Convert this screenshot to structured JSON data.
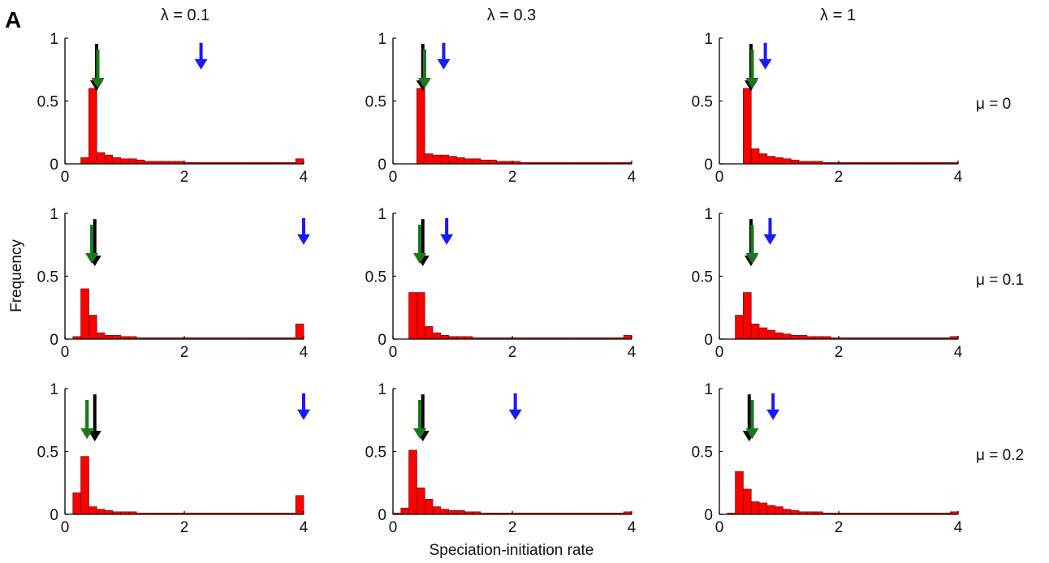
{
  "panel_letter": "A",
  "y_axis_label": "Frequency",
  "x_axis_label": "Speciation-initiation rate",
  "column_labels": [
    "λ = 0.1",
    "λ = 0.3",
    "λ = 1"
  ],
  "row_labels": [
    "μ = 0",
    "μ = 0.1",
    "μ = 0.2"
  ],
  "colors": {
    "bars": "#ff0000",
    "bar_edge": "#7a1010",
    "arrow_black": "#000000",
    "arrow_green": "#1a7a1a",
    "arrow_blue": "#1a1aff"
  },
  "chart_data": [
    {
      "type": "bar",
      "row": 0,
      "col": 0,
      "xlim": [
        0,
        4
      ],
      "ylim": [
        0,
        1
      ],
      "xticks": [
        0,
        2,
        4
      ],
      "yticks": [
        0,
        0.5,
        1
      ],
      "bin_width": 0.1333,
      "x": [
        0.067,
        0.2,
        0.333,
        0.467,
        0.6,
        0.733,
        0.867,
        1.0,
        1.133,
        1.267,
        1.4,
        1.533,
        1.667,
        1.8,
        1.933,
        2.067,
        2.2,
        2.333,
        2.467,
        2.6,
        2.733,
        2.867,
        3.0,
        3.133,
        3.267,
        3.4,
        3.533,
        3.667,
        3.8,
        3.933
      ],
      "values": [
        0,
        0,
        0.05,
        0.6,
        0.09,
        0.07,
        0.05,
        0.04,
        0.04,
        0.03,
        0.02,
        0.02,
        0.02,
        0.02,
        0.02,
        0.01,
        0.01,
        0.01,
        0.01,
        0.01,
        0.01,
        0.01,
        0.01,
        0.01,
        0.01,
        0.01,
        0.01,
        0.01,
        0.01,
        0.04
      ],
      "arrows": {
        "black": 0.53,
        "green": 0.55,
        "blue": 2.28
      }
    },
    {
      "type": "bar",
      "row": 0,
      "col": 1,
      "xlim": [
        0,
        4
      ],
      "ylim": [
        0,
        1
      ],
      "xticks": [
        0,
        2,
        4
      ],
      "yticks": [
        0,
        0.5,
        1
      ],
      "bin_width": 0.1333,
      "x": [
        0.067,
        0.2,
        0.333,
        0.467,
        0.6,
        0.733,
        0.867,
        1.0,
        1.133,
        1.267,
        1.4,
        1.533,
        1.667,
        1.8,
        1.933,
        2.067,
        2.2,
        2.333,
        2.467,
        2.6,
        2.733,
        2.867,
        3.0,
        3.133,
        3.267,
        3.4,
        3.533,
        3.667,
        3.8,
        3.933
      ],
      "values": [
        0,
        0,
        0,
        0.6,
        0.08,
        0.07,
        0.07,
        0.06,
        0.05,
        0.04,
        0.04,
        0.03,
        0.03,
        0.02,
        0.02,
        0.02,
        0.01,
        0.01,
        0.01,
        0.01,
        0.01,
        0.01,
        0.01,
        0.01,
        0.01,
        0.01,
        0.01,
        0.01,
        0.01,
        0.01
      ],
      "arrows": {
        "black": 0.5,
        "green": 0.53,
        "blue": 0.85
      }
    },
    {
      "type": "bar",
      "row": 0,
      "col": 2,
      "xlim": [
        0,
        4
      ],
      "ylim": [
        0,
        1
      ],
      "xticks": [
        0,
        2,
        4
      ],
      "yticks": [
        0,
        0.5,
        1
      ],
      "bin_width": 0.1333,
      "x": [
        0.067,
        0.2,
        0.333,
        0.467,
        0.6,
        0.733,
        0.867,
        1.0,
        1.133,
        1.267,
        1.4,
        1.533,
        1.667,
        1.8,
        1.933,
        2.067,
        2.2,
        2.333,
        2.467,
        2.6,
        2.733,
        2.867,
        3.0,
        3.133,
        3.267,
        3.4,
        3.533,
        3.667,
        3.8,
        3.933
      ],
      "values": [
        0,
        0,
        0,
        0.6,
        0.12,
        0.08,
        0.06,
        0.05,
        0.04,
        0.03,
        0.02,
        0.02,
        0.02,
        0.01,
        0.01,
        0.01,
        0.01,
        0.01,
        0.01,
        0.01,
        0.01,
        0.01,
        0.01,
        0.01,
        0.01,
        0.01,
        0.01,
        0.01,
        0.01,
        0.01
      ],
      "arrows": {
        "black": 0.53,
        "green": 0.55,
        "blue": 0.77
      }
    },
    {
      "type": "bar",
      "row": 1,
      "col": 0,
      "xlim": [
        0,
        4
      ],
      "ylim": [
        0,
        1
      ],
      "xticks": [
        0,
        2,
        4
      ],
      "yticks": [
        0,
        0.5,
        1
      ],
      "bin_width": 0.1333,
      "x": [
        0.067,
        0.2,
        0.333,
        0.467,
        0.6,
        0.733,
        0.867,
        1.0,
        1.133,
        1.267,
        1.4,
        1.533,
        1.667,
        1.8,
        1.933,
        2.067,
        2.2,
        2.333,
        2.467,
        2.6,
        2.733,
        2.867,
        3.0,
        3.133,
        3.267,
        3.4,
        3.533,
        3.667,
        3.8,
        3.933
      ],
      "values": [
        0,
        0.02,
        0.4,
        0.19,
        0.05,
        0.03,
        0.03,
        0.02,
        0.02,
        0.01,
        0.01,
        0.01,
        0.01,
        0.01,
        0.01,
        0.01,
        0.01,
        0.01,
        0.01,
        0.01,
        0.01,
        0.01,
        0.01,
        0.01,
        0.01,
        0.01,
        0.01,
        0.01,
        0.01,
        0.12
      ],
      "arrows": {
        "black": 0.5,
        "green": 0.45,
        "blue": 4.0
      }
    },
    {
      "type": "bar",
      "row": 1,
      "col": 1,
      "xlim": [
        0,
        4
      ],
      "ylim": [
        0,
        1
      ],
      "xticks": [
        0,
        2,
        4
      ],
      "yticks": [
        0,
        0.5,
        1
      ],
      "bin_width": 0.1333,
      "x": [
        0.067,
        0.2,
        0.333,
        0.467,
        0.6,
        0.733,
        0.867,
        1.0,
        1.133,
        1.267,
        1.4,
        1.533,
        1.667,
        1.8,
        1.933,
        2.067,
        2.2,
        2.333,
        2.467,
        2.6,
        2.733,
        2.867,
        3.0,
        3.133,
        3.267,
        3.4,
        3.533,
        3.667,
        3.8,
        3.933
      ],
      "values": [
        0,
        0,
        0.37,
        0.37,
        0.1,
        0.05,
        0.03,
        0.02,
        0.02,
        0.02,
        0.01,
        0.01,
        0.01,
        0.01,
        0.01,
        0.01,
        0.01,
        0.01,
        0.01,
        0.01,
        0.01,
        0.01,
        0.01,
        0.01,
        0.01,
        0.01,
        0.01,
        0.01,
        0.01,
        0.03
      ],
      "arrows": {
        "black": 0.5,
        "green": 0.45,
        "blue": 0.9
      }
    },
    {
      "type": "bar",
      "row": 1,
      "col": 2,
      "xlim": [
        0,
        4
      ],
      "ylim": [
        0,
        1
      ],
      "xticks": [
        0,
        2,
        4
      ],
      "yticks": [
        0,
        0.5,
        1
      ],
      "bin_width": 0.1333,
      "x": [
        0.067,
        0.2,
        0.333,
        0.467,
        0.6,
        0.733,
        0.867,
        1.0,
        1.133,
        1.267,
        1.4,
        1.533,
        1.667,
        1.8,
        1.933,
        2.067,
        2.2,
        2.333,
        2.467,
        2.6,
        2.733,
        2.867,
        3.0,
        3.133,
        3.267,
        3.4,
        3.533,
        3.667,
        3.8,
        3.933
      ],
      "values": [
        0,
        0,
        0.19,
        0.37,
        0.12,
        0.09,
        0.07,
        0.05,
        0.04,
        0.03,
        0.03,
        0.02,
        0.02,
        0.02,
        0.01,
        0.01,
        0.01,
        0.01,
        0.01,
        0.01,
        0.01,
        0.01,
        0.01,
        0.01,
        0.01,
        0.01,
        0.01,
        0.01,
        0.01,
        0.02
      ],
      "arrows": {
        "black": 0.53,
        "green": 0.55,
        "blue": 0.85
      }
    },
    {
      "type": "bar",
      "row": 2,
      "col": 0,
      "xlim": [
        0,
        4
      ],
      "ylim": [
        0,
        1
      ],
      "xticks": [
        0,
        2,
        4
      ],
      "yticks": [
        0,
        0.5,
        1
      ],
      "bin_width": 0.1333,
      "x": [
        0.067,
        0.2,
        0.333,
        0.467,
        0.6,
        0.733,
        0.867,
        1.0,
        1.133,
        1.267,
        1.4,
        1.533,
        1.667,
        1.8,
        1.933,
        2.067,
        2.2,
        2.333,
        2.467,
        2.6,
        2.733,
        2.867,
        3.0,
        3.133,
        3.267,
        3.4,
        3.533,
        3.667,
        3.8,
        3.933
      ],
      "values": [
        0,
        0.17,
        0.46,
        0.06,
        0.04,
        0.03,
        0.02,
        0.02,
        0.02,
        0.01,
        0.01,
        0.01,
        0.01,
        0.01,
        0.01,
        0.01,
        0.01,
        0.01,
        0.01,
        0.01,
        0.01,
        0.01,
        0.01,
        0.01,
        0.01,
        0.01,
        0.01,
        0.01,
        0.01,
        0.15
      ],
      "arrows": {
        "black": 0.5,
        "green": 0.37,
        "blue": 4.0
      }
    },
    {
      "type": "bar",
      "row": 2,
      "col": 1,
      "xlim": [
        0,
        4
      ],
      "ylim": [
        0,
        1
      ],
      "xticks": [
        0,
        2,
        4
      ],
      "yticks": [
        0,
        0.5,
        1
      ],
      "bin_width": 0.1333,
      "x": [
        0.067,
        0.2,
        0.333,
        0.467,
        0.6,
        0.733,
        0.867,
        1.0,
        1.133,
        1.267,
        1.4,
        1.533,
        1.667,
        1.8,
        1.933,
        2.067,
        2.2,
        2.333,
        2.467,
        2.6,
        2.733,
        2.867,
        3.0,
        3.133,
        3.267,
        3.4,
        3.533,
        3.667,
        3.8,
        3.933
      ],
      "values": [
        0.01,
        0.05,
        0.51,
        0.21,
        0.12,
        0.06,
        0.04,
        0.03,
        0.03,
        0.02,
        0.02,
        0.01,
        0.01,
        0.01,
        0.01,
        0.01,
        0.01,
        0.01,
        0.01,
        0.01,
        0.01,
        0.01,
        0.01,
        0.01,
        0.01,
        0.01,
        0.01,
        0.01,
        0.01,
        0.02
      ],
      "arrows": {
        "black": 0.5,
        "green": 0.45,
        "blue": 2.05
      }
    },
    {
      "type": "bar",
      "row": 2,
      "col": 2,
      "xlim": [
        0,
        4
      ],
      "ylim": [
        0,
        1
      ],
      "xticks": [
        0,
        2,
        4
      ],
      "yticks": [
        0,
        0.5,
        1
      ],
      "bin_width": 0.1333,
      "x": [
        0.067,
        0.2,
        0.333,
        0.467,
        0.6,
        0.733,
        0.867,
        1.0,
        1.133,
        1.267,
        1.4,
        1.533,
        1.667,
        1.8,
        1.933,
        2.067,
        2.2,
        2.333,
        2.467,
        2.6,
        2.733,
        2.867,
        3.0,
        3.133,
        3.267,
        3.4,
        3.533,
        3.667,
        3.8,
        3.933
      ],
      "values": [
        0,
        0.01,
        0.34,
        0.2,
        0.1,
        0.09,
        0.07,
        0.06,
        0.04,
        0.03,
        0.02,
        0.02,
        0.02,
        0.01,
        0.01,
        0.01,
        0.01,
        0.01,
        0.01,
        0.01,
        0.01,
        0.01,
        0.01,
        0.01,
        0.01,
        0.01,
        0.01,
        0.01,
        0.01,
        0.02
      ],
      "arrows": {
        "black": 0.5,
        "green": 0.55,
        "blue": 0.9
      }
    }
  ]
}
